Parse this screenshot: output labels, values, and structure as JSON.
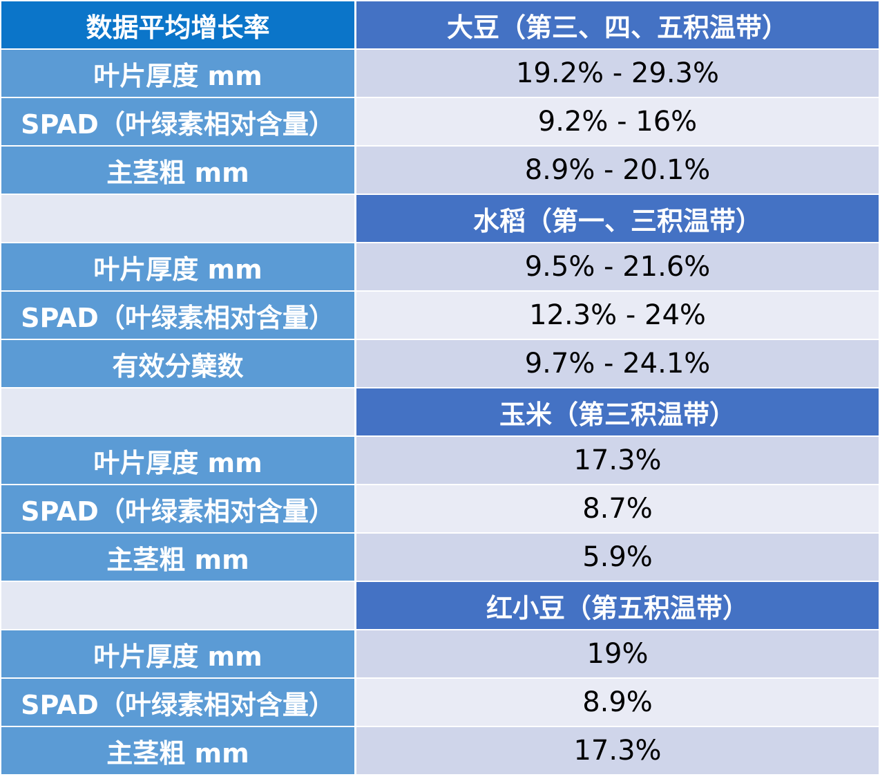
{
  "chart_data": {
    "type": "table",
    "header": {
      "metric_label": "数据平均增长率",
      "first_crop": "大豆（第三、四、五积温带）"
    },
    "sections": [
      {
        "crop": "大豆（第三、四、五积温带）",
        "rows": [
          {
            "metric": "叶片厚度 mm",
            "value": "19.2% - 29.3%"
          },
          {
            "metric": "SPAD（叶绿素相对含量）",
            "value": "9.2% - 16%"
          },
          {
            "metric": "主茎粗 mm",
            "value": "8.9% - 20.1%"
          }
        ]
      },
      {
        "crop": "水稻（第一、三积温带）",
        "rows": [
          {
            "metric": "叶片厚度 mm",
            "value": "9.5% - 21.6%"
          },
          {
            "metric": "SPAD（叶绿素相对含量）",
            "value": "12.3% - 24%"
          },
          {
            "metric": "有效分蘖数",
            "value": "9.7% - 24.1%"
          }
        ]
      },
      {
        "crop": "玉米（第三积温带）",
        "rows": [
          {
            "metric": "叶片厚度 mm",
            "value": "17.3%"
          },
          {
            "metric": "SPAD（叶绿素相对含量）",
            "value": "8.7%"
          },
          {
            "metric": "主茎粗 mm",
            "value": "5.9%"
          }
        ]
      },
      {
        "crop": "红小豆（第五积温带）",
        "rows": [
          {
            "metric": "叶片厚度 mm",
            "value": "19%"
          },
          {
            "metric": "SPAD（叶绿素相对含量）",
            "value": "8.9%"
          },
          {
            "metric": "主茎粗 mm",
            "value": "17.3%"
          }
        ]
      }
    ]
  },
  "colors": {
    "header_left": "#0b75c9",
    "section_blue": "#4472c4",
    "label_blue": "#5b9bd5",
    "value_dark": "#cfd5ea",
    "value_light": "#e9ebf5"
  }
}
